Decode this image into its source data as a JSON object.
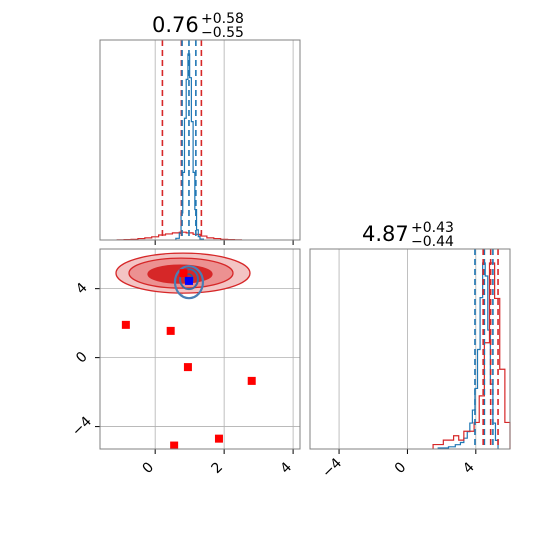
{
  "colors": {
    "red": "#d62728",
    "blue": "#1f77b4",
    "grid": "#b0b0b0",
    "marker_red": "#ff0000",
    "marker_blue": "#0000ff"
  },
  "titles": {
    "param1": {
      "median": "0.76",
      "plus": "+0.58",
      "minus": "−0.55"
    },
    "param2": {
      "median": "4.87",
      "plus": "+0.43",
      "minus": "−0.44"
    }
  },
  "chart_data": [
    {
      "type": "histogram",
      "panel": "top-left",
      "xlim": [
        -1.6,
        4.2
      ],
      "x_ticks": [
        0,
        2,
        4
      ],
      "grid": true,
      "red_quantiles": [
        0.21,
        0.76,
        1.34
      ],
      "blue_quantiles": [
        0.78,
        0.98,
        1.18
      ],
      "red_hist": {
        "edges": [
          -1.1,
          -0.9,
          -0.7,
          -0.5,
          -0.3,
          -0.1,
          0.1,
          0.3,
          0.5,
          0.7,
          0.9,
          1.1,
          1.3,
          1.5,
          1.7,
          1.9,
          2.1,
          2.3,
          2.5
        ],
        "counts": [
          0.5,
          1,
          2,
          4,
          6,
          9,
          14,
          17,
          20,
          22,
          20,
          16,
          11,
          6,
          4,
          2,
          1,
          0.5
        ]
      },
      "blue_hist": {
        "edges": [
          0.6,
          0.7,
          0.75,
          0.8,
          0.85,
          0.9,
          0.95,
          1.0,
          1.05,
          1.1,
          1.15,
          1.2,
          1.25,
          1.3,
          1.4
        ],
        "counts": [
          1,
          4,
          16,
          40,
          72,
          95,
          110,
          96,
          70,
          40,
          18,
          6,
          2,
          0.5
        ]
      }
    },
    {
      "type": "scatter",
      "panel": "bottom-left",
      "xlim": [
        -1.6,
        4.2
      ],
      "ylim": [
        -5.3,
        6.3
      ],
      "x_ticks": [
        0,
        2,
        4
      ],
      "y_ticks": [
        -4,
        0,
        4
      ],
      "grid": true,
      "red_markers": [
        [
          -0.85,
          1.9
        ],
        [
          0.45,
          1.55
        ],
        [
          0.95,
          -0.55
        ],
        [
          2.8,
          -1.35
        ],
        [
          0.55,
          -5.1
        ],
        [
          1.85,
          -4.7
        ],
        [
          0.82,
          4.9
        ]
      ],
      "blue_marker": [
        0.98,
        4.45
      ],
      "red_contour_center": [
        0.72,
        4.9
      ],
      "blue_contour_center": [
        0.98,
        4.55
      ]
    },
    {
      "type": "histogram",
      "panel": "bottom-right",
      "xlim": [
        -5.7,
        6.0
      ],
      "x_ticks": [
        -4,
        0,
        4
      ],
      "grid": true,
      "red_quantiles": [
        4.43,
        4.87,
        5.3
      ],
      "blue_quantiles": [
        3.95,
        4.5,
        5.0
      ],
      "red_hist": {
        "edges": [
          1.5,
          1.8,
          2.1,
          2.4,
          2.7,
          3.0,
          3.3,
          3.6,
          3.9,
          4.2,
          4.5,
          4.8,
          5.1,
          5.4,
          5.7,
          6.0
        ],
        "counts": [
          0.5,
          0.5,
          1,
          1,
          1.5,
          1,
          2,
          2,
          3,
          6,
          12,
          21,
          17,
          9,
          3
        ]
      },
      "blue_hist": {
        "edges": [
          1.8,
          2.4,
          2.8,
          3.1,
          3.3,
          3.5,
          3.65,
          3.8,
          3.95,
          4.1,
          4.25,
          4.4,
          4.55,
          4.7,
          4.85,
          5.0,
          5.15,
          5.3
        ],
        "counts": [
          0.5,
          1,
          2,
          3,
          5,
          8,
          12,
          18,
          28,
          46,
          70,
          86,
          80,
          55,
          30,
          12,
          4
        ]
      }
    }
  ]
}
